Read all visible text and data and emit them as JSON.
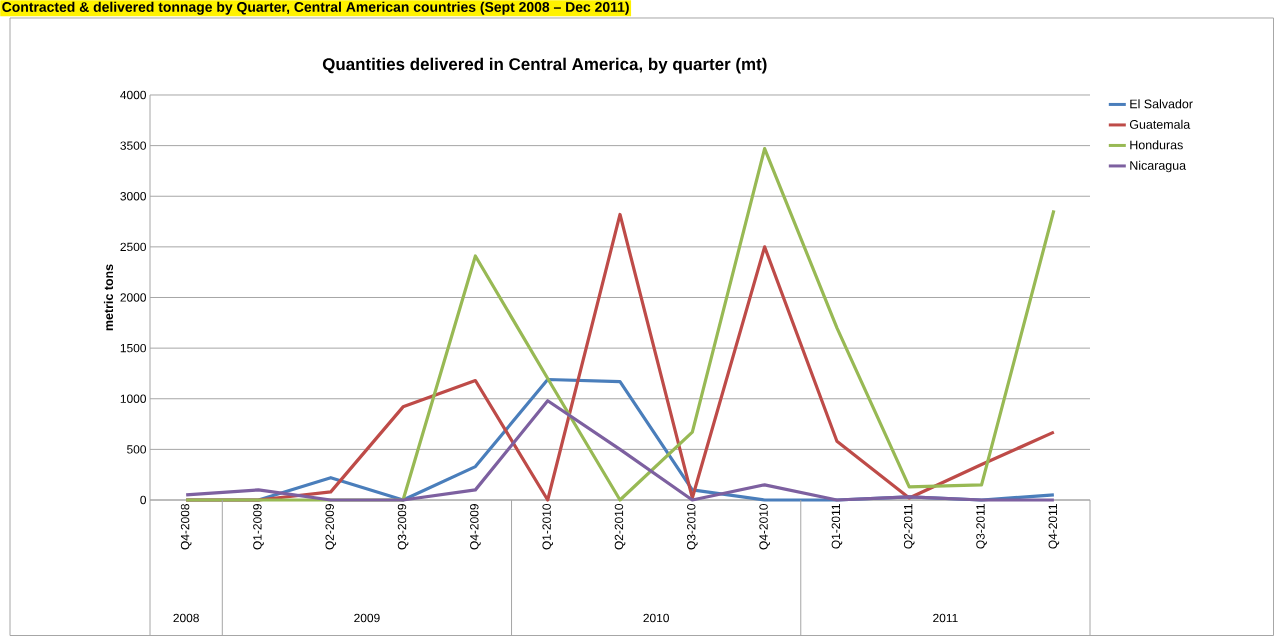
{
  "chart_data": {
    "type": "line",
    "title": "Quantities delivered in Central America, by quarter (mt)",
    "ylabel": "metric tons",
    "categories": [
      "Q4-2008",
      "Q1-2009",
      "Q2-2009",
      "Q3-2009",
      "Q4-2009",
      "Q1-2010",
      "Q2-2010",
      "Q3-2010",
      "Q4-2010",
      "Q1-2011",
      "Q2-2011",
      "Q3-2011",
      "Q4-2011"
    ],
    "series": [
      {
        "name": "El Salvador",
        "color": "#4a7ebb",
        "values": [
          0,
          0,
          220,
          0,
          330,
          1190,
          1170,
          100,
          0,
          0,
          30,
          0,
          50
        ]
      },
      {
        "name": "Guatemala",
        "color": "#be4b48",
        "values": [
          0,
          0,
          80,
          920,
          1180,
          0,
          2820,
          20,
          2500,
          580,
          20,
          350,
          670
        ]
      },
      {
        "name": "Honduras",
        "color": "#98b954",
        "values": [
          0,
          0,
          0,
          0,
          2410,
          1200,
          0,
          670,
          3470,
          1700,
          130,
          150,
          2860
        ]
      },
      {
        "name": "Nicaragua",
        "color": "#7d60a0",
        "values": [
          50,
          100,
          0,
          0,
          100,
          980,
          500,
          0,
          150,
          0,
          30,
          0,
          0
        ]
      }
    ],
    "ylim": [
      0,
      4000
    ],
    "yticks": [
      0,
      500,
      1000,
      1500,
      2000,
      2500,
      3000,
      3500,
      4000
    ],
    "grid": "y",
    "legend": "right",
    "marker": "none",
    "line_style": "solid",
    "annotations": [
      "Contracted & delivered tonnage by Quarter, Central American countries (Sept 2008 – Dec 2011)",
      "2008",
      "2009",
      "2010",
      "2011"
    ]
  }
}
